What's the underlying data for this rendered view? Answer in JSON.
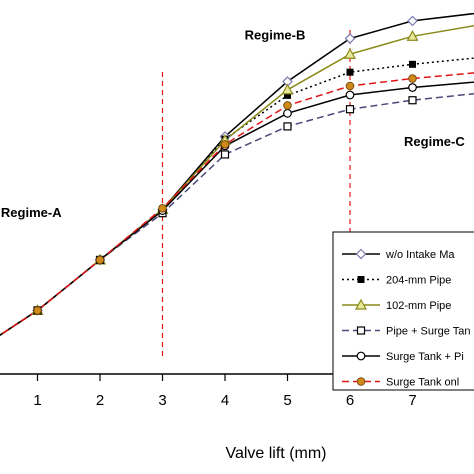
{
  "chart_data": {
    "type": "line",
    "xlabel": "Valve lift (mm)",
    "ylabel": "",
    "xlim": [
      0,
      8.3
    ],
    "ylim": [
      0,
      1
    ],
    "x_ticks": [
      "1",
      "2",
      "3",
      "4",
      "5",
      "6",
      "7"
    ],
    "grid": false,
    "legend": "right",
    "regime_boundaries": [
      3,
      6
    ],
    "regime_labels": [
      {
        "text": "Regime-A",
        "x": 0.9,
        "y": 0.42
      },
      {
        "text": "Regime-B",
        "x": 4.8,
        "y": 0.895
      },
      {
        "text": "Regime-C",
        "x": 7.35,
        "y": 0.61
      }
    ],
    "series": [
      {
        "name": "w/o Intake Ma",
        "color": "#000000",
        "dash": "",
        "marker": "diamond",
        "x": [
          0,
          1,
          2,
          3,
          4,
          5,
          6,
          7,
          8.3
        ],
        "y": [
          0.06,
          0.17,
          0.305,
          0.44,
          0.635,
          0.782,
          0.897,
          0.944,
          0.97
        ]
      },
      {
        "name": "204-mm Pipe",
        "color": "#000000",
        "dash": "2,3",
        "marker": "filled-square",
        "x": [
          0,
          1,
          2,
          3,
          4,
          5,
          6,
          7,
          8.3
        ],
        "y": [
          0.06,
          0.17,
          0.305,
          0.44,
          0.628,
          0.745,
          0.807,
          0.828,
          0.85
        ]
      },
      {
        "name": "102-mm Pipe",
        "color": "#8a8a1a",
        "dash": "",
        "marker": "triangle",
        "x": [
          0,
          1,
          2,
          3,
          4,
          5,
          6,
          7,
          8.3
        ],
        "y": [
          0.06,
          0.17,
          0.305,
          0.44,
          0.625,
          0.76,
          0.855,
          0.903,
          0.94
        ]
      },
      {
        "name": "Pipe + Surge Tan",
        "color": "#4a4a7a",
        "dash": "7,4",
        "marker": "open-square",
        "x": [
          0,
          1,
          2,
          3,
          4,
          5,
          6,
          7,
          8.3
        ],
        "y": [
          0.06,
          0.17,
          0.305,
          0.43,
          0.587,
          0.662,
          0.708,
          0.732,
          0.755
        ]
      },
      {
        "name": "Surge Tank + Pi",
        "color": "#000000",
        "dash": "",
        "marker": "open-circle",
        "x": [
          0,
          1,
          2,
          3,
          4,
          5,
          6,
          7,
          8.3
        ],
        "y": [
          0.06,
          0.17,
          0.305,
          0.437,
          0.61,
          0.697,
          0.746,
          0.766,
          0.785
        ]
      },
      {
        "name": "Surge Tank onl",
        "color": "#e11414",
        "dash": "7,4",
        "marker": "orange-circle",
        "x": [
          0,
          1,
          2,
          3,
          4,
          5,
          6,
          7,
          8.3
        ],
        "y": [
          0.06,
          0.17,
          0.305,
          0.443,
          0.614,
          0.718,
          0.77,
          0.79,
          0.81
        ]
      }
    ]
  }
}
